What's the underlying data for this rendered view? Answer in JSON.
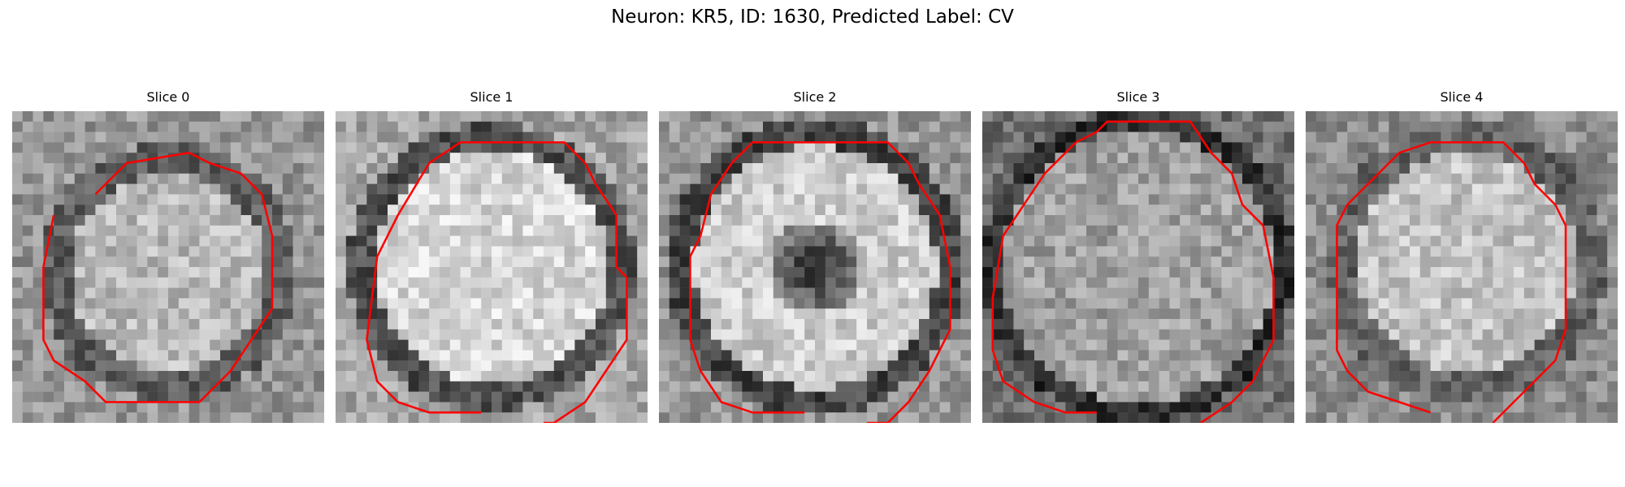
{
  "figure": {
    "title": "Neuron: KR5, ID: 1630, Predicted Label: CV"
  },
  "colors": {
    "contour": "#ff0000",
    "background": "#ffffff"
  },
  "panels": [
    {
      "title": "Slice 0"
    },
    {
      "title": "Slice 1"
    },
    {
      "title": "Slice 2"
    },
    {
      "title": "Slice 3"
    },
    {
      "title": "Slice 4"
    }
  ]
}
